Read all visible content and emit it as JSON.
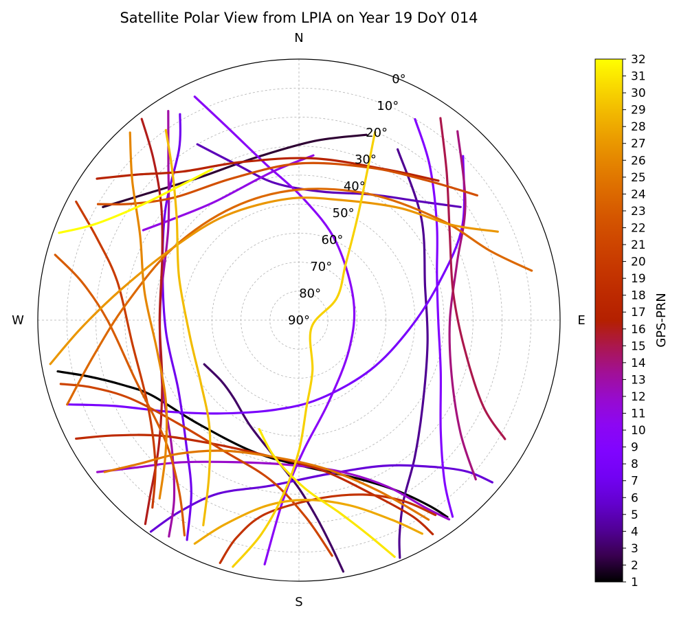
{
  "chart_data": {
    "type": "scatter",
    "subtype": "polar-skyplot",
    "title": "Satellite Polar View from LPIA on Year 19 DoY 014",
    "direction_labels": {
      "north": "N",
      "east": "E",
      "south": "S",
      "west": "W"
    },
    "radial_axis": {
      "quantity": "elevation",
      "range": [
        0,
        90
      ],
      "tick_labels": [
        "0°",
        "10°",
        "20°",
        "30°",
        "40°",
        "50°",
        "60°",
        "70°",
        "80°",
        "90°"
      ]
    },
    "grid": true,
    "colorbar": {
      "label": "GPS-PRN",
      "colormap": "gnuplot",
      "range": [
        1,
        32
      ],
      "tick_labels": [
        "1",
        "2",
        "3",
        "4",
        "5",
        "6",
        "7",
        "8",
        "9",
        "10",
        "11",
        "12",
        "13",
        "14",
        "15",
        "16",
        "17",
        "18",
        "19",
        "20",
        "21",
        "22",
        "23",
        "24",
        "25",
        "26",
        "27",
        "28",
        "29",
        "30",
        "31",
        "32"
      ],
      "placement": "right"
    },
    "series": [
      {
        "prn": 1,
        "points": [
          [
            258,
            5
          ],
          [
            255,
            15
          ],
          [
            250,
            25
          ],
          [
            243,
            33
          ],
          [
            225,
            40
          ],
          [
            200,
            42
          ],
          [
            180,
            40
          ],
          [
            160,
            32
          ],
          [
            150,
            22
          ],
          [
            145,
            12
          ],
          [
            143,
            5
          ]
        ]
      },
      {
        "prn": 2,
        "points": [
          [
            300,
            12
          ],
          [
            310,
            22
          ],
          [
            325,
            30
          ],
          [
            345,
            32
          ],
          [
            5,
            28
          ],
          [
            20,
            22
          ]
        ]
      },
      {
        "prn": 3,
        "points": [
          [
            170,
            2
          ],
          [
            172,
            12
          ],
          [
            175,
            22
          ],
          [
            180,
            32
          ],
          [
            190,
            42
          ],
          [
            205,
            50
          ],
          [
            220,
            55
          ],
          [
            232,
            56
          ],
          [
            245,
            54
          ]
        ]
      },
      {
        "prn": 4,
        "points": [
          [
            30,
            22
          ],
          [
            50,
            35
          ],
          [
            75,
            45
          ],
          [
            100,
            45
          ],
          [
            125,
            38
          ],
          [
            140,
            28
          ],
          [
            150,
            18
          ],
          [
            155,
            8
          ],
          [
            157,
            1
          ]
        ]
      },
      {
        "prn": 5,
        "points": [
          [
            330,
            20
          ],
          [
            338,
            32
          ],
          [
            350,
            42
          ],
          [
            10,
            45
          ],
          [
            30,
            40
          ],
          [
            45,
            32
          ],
          [
            55,
            22
          ]
        ]
      },
      {
        "prn": 6,
        "points": [
          [
            215,
            1
          ],
          [
            212,
            12
          ],
          [
            205,
            24
          ],
          [
            190,
            32
          ],
          [
            170,
            36
          ],
          [
            150,
            32
          ],
          [
            138,
            22
          ],
          [
            132,
            12
          ],
          [
            130,
            3
          ]
        ]
      },
      {
        "prn": 7,
        "points": [
          [
            330,
            8
          ],
          [
            325,
            18
          ],
          [
            310,
            30
          ],
          [
            290,
            40
          ],
          [
            265,
            44
          ],
          [
            240,
            42
          ],
          [
            222,
            32
          ],
          [
            212,
            20
          ],
          [
            207,
            5
          ]
        ]
      },
      {
        "prn": 8,
        "points": [
          [
            45,
            10
          ],
          [
            60,
            25
          ],
          [
            75,
            40
          ],
          [
            95,
            52
          ],
          [
            125,
            60
          ],
          [
            165,
            62
          ],
          [
            195,
            58
          ],
          [
            220,
            48
          ],
          [
            235,
            35
          ],
          [
            245,
            20
          ],
          [
            250,
            5
          ]
        ]
      },
      {
        "prn": 9,
        "points": [
          [
            30,
            10
          ],
          [
            40,
            20
          ],
          [
            55,
            32
          ],
          [
            72,
            40
          ],
          [
            90,
            42
          ],
          [
            110,
            38
          ],
          [
            128,
            28
          ],
          [
            138,
            15
          ],
          [
            142,
            4
          ]
        ]
      },
      {
        "prn": 10,
        "points": [
          [
            335,
            5
          ],
          [
            340,
            20
          ],
          [
            348,
            35
          ],
          [
            2,
            48
          ],
          [
            25,
            60
          ],
          [
            70,
            70
          ],
          [
            120,
            70
          ],
          [
            160,
            60
          ],
          [
            178,
            45
          ],
          [
            185,
            28
          ],
          [
            188,
            5
          ]
        ]
      },
      {
        "prn": 11,
        "points": [
          [
            300,
            28
          ],
          [
            310,
            35
          ],
          [
            325,
            40
          ],
          [
            350,
            38
          ],
          [
            5,
            33
          ]
        ]
      },
      {
        "prn": 12,
        "points": [
          [
            233,
            3
          ],
          [
            228,
            14
          ],
          [
            220,
            26
          ],
          [
            205,
            36
          ],
          [
            185,
            40
          ],
          [
            165,
            36
          ],
          [
            152,
            25
          ],
          [
            146,
            12
          ],
          [
            143,
            4
          ]
        ]
      },
      {
        "prn": 13,
        "points": [
          [
            328,
            5
          ],
          [
            320,
            20
          ],
          [
            305,
            35
          ],
          [
            275,
            42
          ],
          [
            245,
            38
          ],
          [
            225,
            28
          ],
          [
            215,
            15
          ],
          [
            211,
            3
          ]
        ]
      },
      {
        "prn": 14,
        "points": [
          [
            40,
            5
          ],
          [
            55,
            20
          ],
          [
            70,
            32
          ],
          [
            90,
            38
          ],
          [
            110,
            34
          ],
          [
            125,
            22
          ],
          [
            132,
            8
          ]
        ]
      },
      {
        "prn": 15,
        "points": [
          [
            35,
            5
          ],
          [
            45,
            18
          ],
          [
            60,
            30
          ],
          [
            80,
            36
          ],
          [
            100,
            32
          ],
          [
            115,
            20
          ],
          [
            120,
            8
          ]
        ]
      },
      {
        "prn": 16,
        "points": [
          [
            322,
            2
          ],
          [
            318,
            15
          ],
          [
            310,
            28
          ],
          [
            295,
            38
          ],
          [
            270,
            42
          ],
          [
            245,
            38
          ],
          [
            228,
            25
          ],
          [
            220,
            10
          ],
          [
            217,
            2
          ]
        ]
      },
      {
        "prn": 17,
        "points": [
          [
            305,
            5
          ],
          [
            312,
            15
          ],
          [
            322,
            25
          ],
          [
            340,
            32
          ],
          [
            5,
            34
          ],
          [
            30,
            30
          ],
          [
            45,
            22
          ]
        ]
      },
      {
        "prn": 18,
        "points": [
          [
            242,
            3
          ],
          [
            238,
            15
          ],
          [
            230,
            28
          ],
          [
            215,
            38
          ],
          [
            195,
            42
          ],
          [
            172,
            38
          ],
          [
            158,
            26
          ],
          [
            150,
            12
          ],
          [
            148,
            3
          ]
        ]
      },
      {
        "prn": 19,
        "points": [
          [
            198,
            2
          ],
          [
            196,
            12
          ],
          [
            190,
            22
          ],
          [
            175,
            28
          ],
          [
            160,
            26
          ],
          [
            150,
            18
          ],
          [
            145,
            8
          ]
        ]
      },
      {
        "prn": 20,
        "points": [
          [
            298,
            3
          ],
          [
            292,
            15
          ],
          [
            282,
            26
          ],
          [
            262,
            32
          ],
          [
            240,
            30
          ],
          [
            225,
            20
          ],
          [
            218,
            8
          ]
        ]
      },
      {
        "prn": 21,
        "points": [
          [
            255,
            5
          ],
          [
            252,
            15
          ],
          [
            245,
            26
          ],
          [
            230,
            35
          ],
          [
            210,
            38
          ],
          [
            190,
            34
          ],
          [
            178,
            22
          ],
          [
            172,
            8
          ]
        ]
      },
      {
        "prn": 22,
        "points": [
          [
            300,
            10
          ],
          [
            305,
            20
          ],
          [
            315,
            30
          ],
          [
            335,
            36
          ],
          [
            0,
            36
          ],
          [
            25,
            32
          ],
          [
            42,
            25
          ],
          [
            55,
            15
          ]
        ]
      },
      {
        "prn": 23,
        "points": [
          [
            285,
            3
          ],
          [
            280,
            14
          ],
          [
            270,
            24
          ],
          [
            250,
            30
          ],
          [
            228,
            28
          ],
          [
            215,
            18
          ],
          [
            208,
            6
          ]
        ]
      },
      {
        "prn": 24,
        "points": [
          [
            250,
            5
          ],
          [
            260,
            18
          ],
          [
            275,
            30
          ],
          [
            300,
            40
          ],
          [
            330,
            45
          ],
          [
            0,
            45
          ],
          [
            30,
            40
          ],
          [
            55,
            30
          ],
          [
            70,
            20
          ],
          [
            78,
            8
          ]
        ]
      },
      {
        "prn": 25,
        "points": [
          [
            232,
            5
          ],
          [
            228,
            16
          ],
          [
            222,
            28
          ],
          [
            210,
            38
          ],
          [
            192,
            42
          ],
          [
            170,
            38
          ],
          [
            155,
            25
          ],
          [
            147,
            8
          ]
        ]
      },
      {
        "prn": 26,
        "points": [
          [
            318,
            3
          ],
          [
            310,
            15
          ],
          [
            298,
            28
          ],
          [
            280,
            36
          ],
          [
            258,
            40
          ],
          [
            238,
            36
          ],
          [
            225,
            25
          ],
          [
            218,
            12
          ]
        ]
      },
      {
        "prn": 27,
        "points": [
          [
            260,
            3
          ],
          [
            268,
            15
          ],
          [
            280,
            28
          ],
          [
            300,
            40
          ],
          [
            325,
            46
          ],
          [
            355,
            48
          ],
          [
            20,
            46
          ],
          [
            42,
            38
          ],
          [
            58,
            28
          ],
          [
            66,
            15
          ]
        ]
      },
      {
        "prn": 28,
        "points": [
          [
            205,
            5
          ],
          [
            200,
            15
          ],
          [
            190,
            25
          ],
          [
            178,
            28
          ],
          [
            165,
            24
          ],
          [
            155,
            14
          ],
          [
            150,
            5
          ]
        ]
      },
      {
        "prn": 29,
        "points": [
          [
            325,
            10
          ],
          [
            320,
            22
          ],
          [
            310,
            35
          ],
          [
            290,
            46
          ],
          [
            262,
            52
          ],
          [
            238,
            50
          ],
          [
            220,
            42
          ],
          [
            210,
            28
          ],
          [
            205,
            12
          ]
        ]
      },
      {
        "prn": 30,
        "points": [
          [
            195,
            2
          ],
          [
            190,
            15
          ],
          [
            185,
            30
          ],
          [
            180,
            45
          ],
          [
            175,
            60
          ],
          [
            165,
            72
          ],
          [
            120,
            85
          ],
          [
            60,
            75
          ],
          [
            40,
            65
          ],
          [
            30,
            50
          ],
          [
            25,
            35
          ],
          [
            22,
            20
          ]
        ]
      },
      {
        "prn": 31,
        "points": [
          [
            158,
            2
          ],
          [
            162,
            12
          ],
          [
            168,
            22
          ],
          [
            178,
            32
          ],
          [
            190,
            42
          ],
          [
            200,
            50
          ]
        ]
      },
      {
        "prn": 32,
        "points": [
          [
            290,
            2
          ],
          [
            295,
            12
          ],
          [
            305,
            22
          ],
          [
            318,
            28
          ],
          [
            330,
            30
          ]
        ]
      }
    ]
  }
}
